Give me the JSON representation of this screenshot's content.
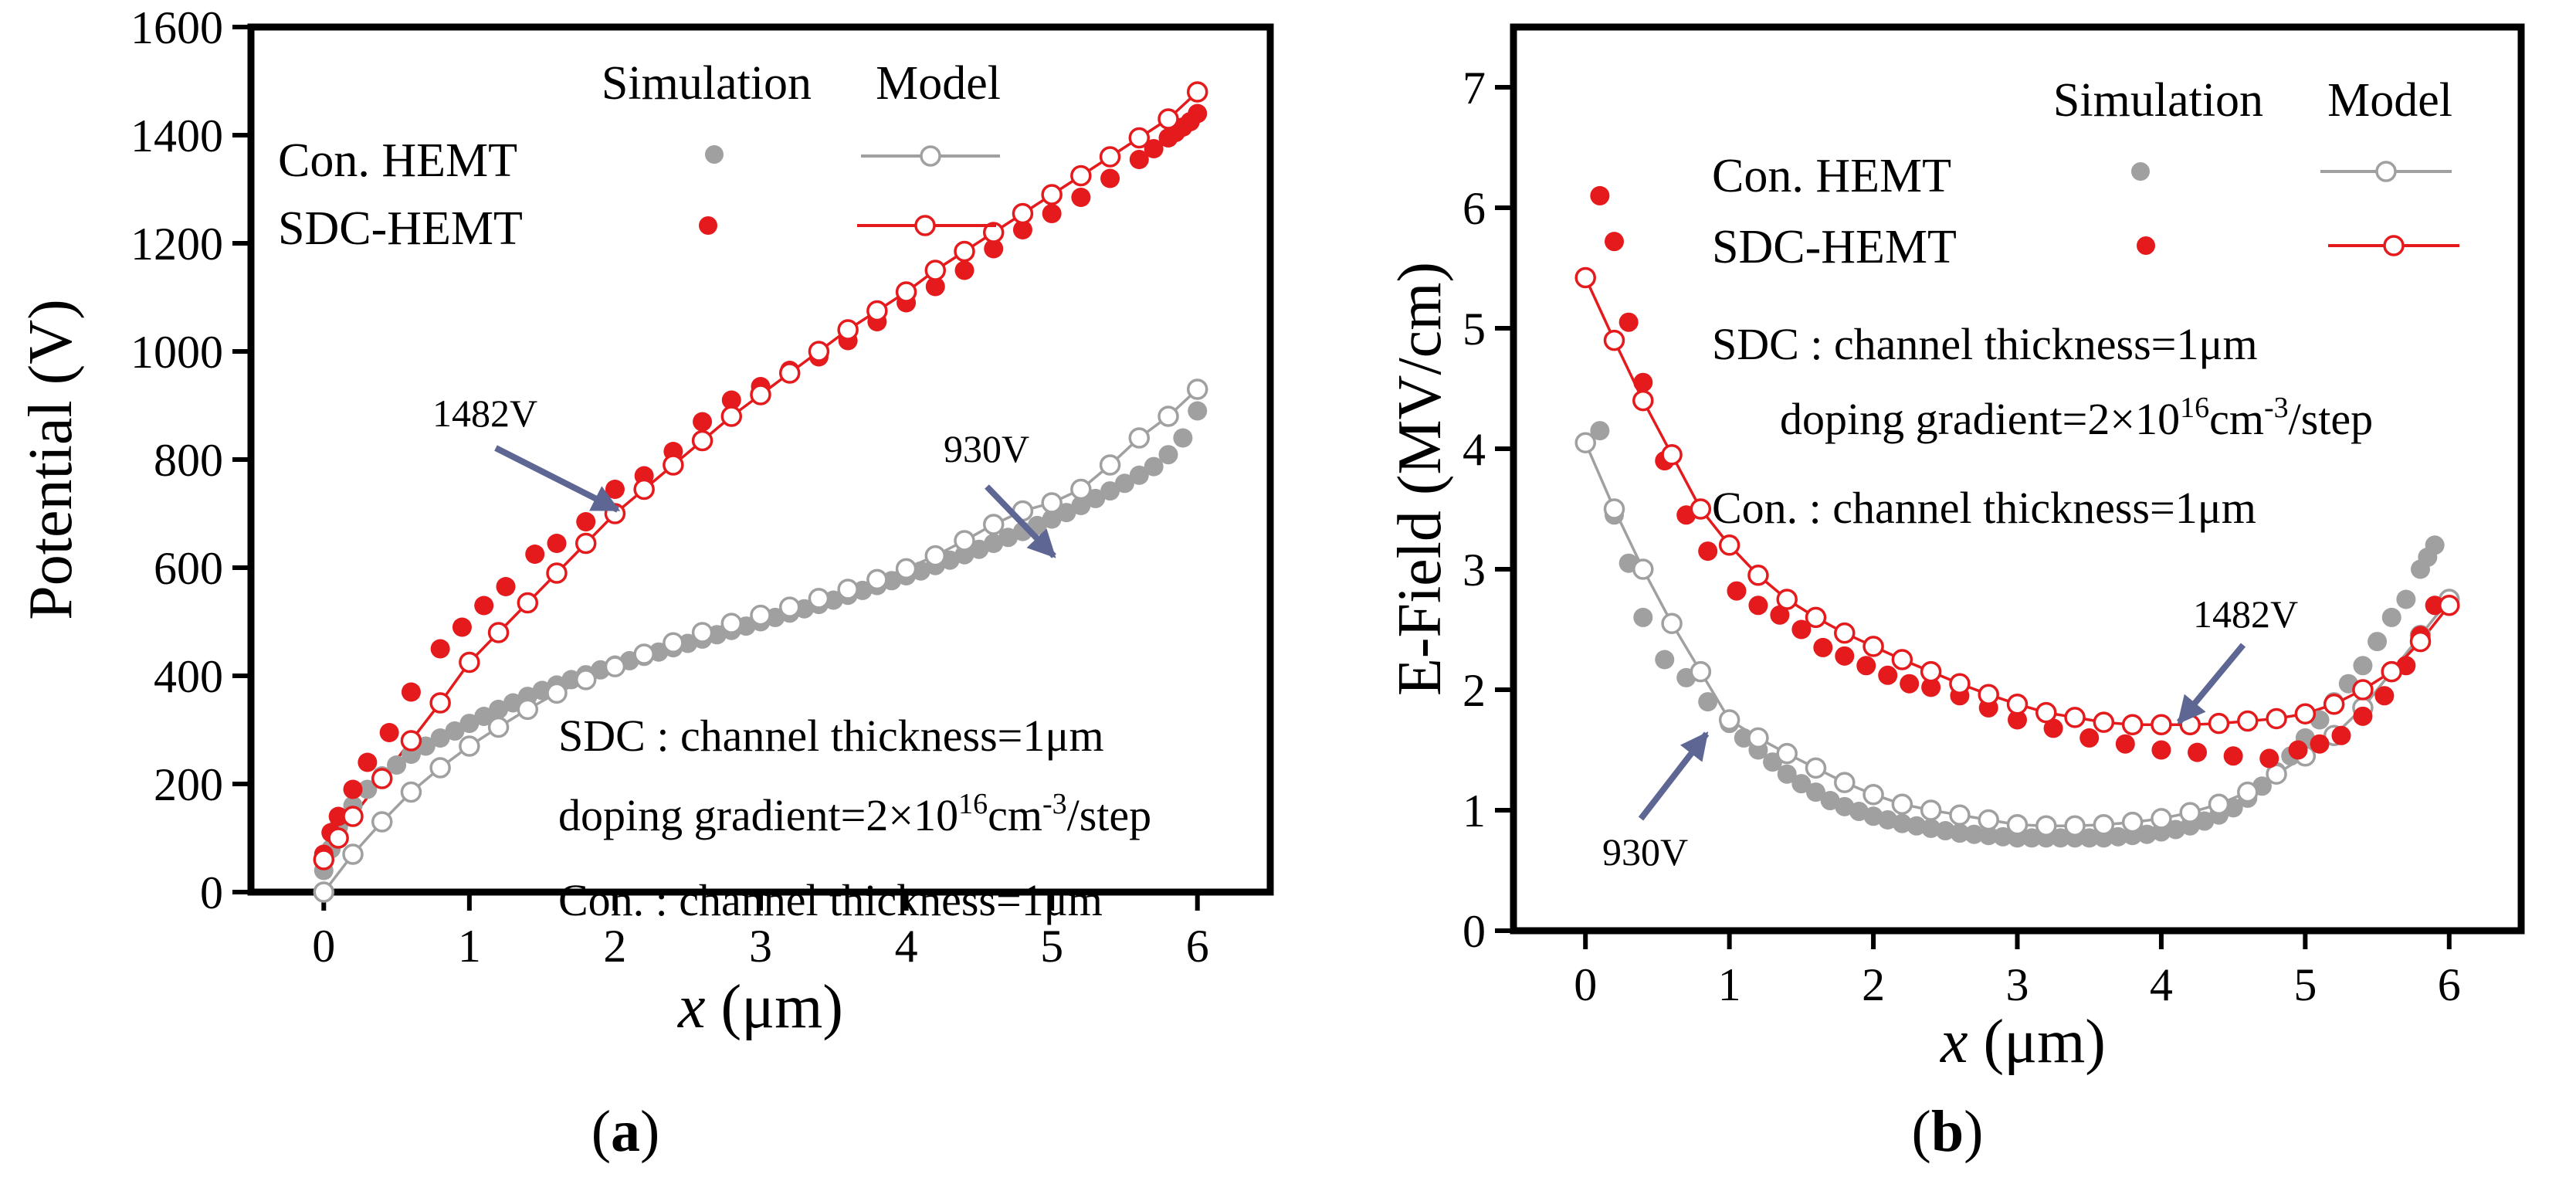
{
  "colors": {
    "con": "#a0a0a0",
    "sdc": "#e41a1c",
    "arrow": "#5e6694"
  },
  "chart_data": [
    {
      "type": "scatter",
      "panel": "(a)",
      "xlabel_var": "x",
      "xlabel_unit": " (μm)",
      "ylabel": "Potential (V)",
      "xlim": [
        -0.5,
        6.5
      ],
      "ylim": [
        0,
        1600
      ],
      "xticks": [
        0,
        1,
        2,
        3,
        4,
        5,
        6
      ],
      "yticks": [
        0,
        200,
        400,
        600,
        800,
        1000,
        1200,
        1400,
        1600
      ],
      "legend": {
        "col_sim": "Simulation",
        "col_model": "Model",
        "rows": [
          "Con. HEMT",
          "SDC-HEMT"
        ]
      },
      "annotations": {
        "line1": "SDC : channel thickness=1μm",
        "line2_pre": "doping gradient=2×10",
        "line2_sup1": "16",
        "line2_mid": "cm",
        "line2_sup2": "-3",
        "line2_post": "/step",
        "line3": "Con. : channel thickness=1μm",
        "arrow1": "1482V",
        "arrow2": "930V"
      },
      "series": [
        {
          "name": "Con. HEMT Simulation",
          "style": "dot",
          "color": "con",
          "x": [
            0,
            0.05,
            0.1,
            0.2,
            0.3,
            0.4,
            0.5,
            0.6,
            0.7,
            0.8,
            0.9,
            1.0,
            1.1,
            1.2,
            1.3,
            1.4,
            1.5,
            1.6,
            1.7,
            1.8,
            1.9,
            2.0,
            2.1,
            2.2,
            2.3,
            2.4,
            2.5,
            2.6,
            2.7,
            2.8,
            2.9,
            3.0,
            3.1,
            3.2,
            3.3,
            3.4,
            3.5,
            3.6,
            3.7,
            3.8,
            3.9,
            4.0,
            4.1,
            4.2,
            4.3,
            4.4,
            4.5,
            4.6,
            4.7,
            4.8,
            4.9,
            5.0,
            5.1,
            5.2,
            5.3,
            5.4,
            5.5,
            5.6,
            5.7,
            5.8,
            5.9,
            6.0
          ],
          "y": [
            40,
            80,
            120,
            160,
            190,
            215,
            235,
            255,
            270,
            285,
            298,
            312,
            325,
            338,
            350,
            362,
            373,
            383,
            393,
            402,
            411,
            420,
            428,
            436,
            444,
            452,
            460,
            468,
            476,
            484,
            492,
            500,
            508,
            516,
            524,
            532,
            540,
            549,
            558,
            567,
            576,
            585,
            594,
            604,
            614,
            624,
            634,
            645,
            656,
            667,
            678,
            690,
            702,
            715,
            728,
            742,
            756,
            771,
            787,
            809,
            840,
            890
          ]
        },
        {
          "name": "Con. HEMT Model",
          "style": "open",
          "color": "con",
          "x": [
            0,
            0.2,
            0.4,
            0.6,
            0.8,
            1.0,
            1.2,
            1.4,
            1.6,
            1.8,
            2.0,
            2.2,
            2.4,
            2.6,
            2.8,
            3.0,
            3.2,
            3.4,
            3.6,
            3.8,
            4.0,
            4.2,
            4.4,
            4.6,
            4.8,
            5.0,
            5.2,
            5.4,
            5.6,
            5.8,
            6.0
          ],
          "y": [
            0,
            70,
            130,
            185,
            230,
            270,
            305,
            338,
            368,
            393,
            417,
            440,
            461,
            480,
            497,
            512,
            527,
            543,
            560,
            578,
            598,
            622,
            650,
            680,
            705,
            720,
            745,
            790,
            840,
            880,
            930
          ]
        },
        {
          "name": "SDC-HEMT Simulation",
          "style": "dot",
          "color": "sdc",
          "x": [
            0,
            0.05,
            0.1,
            0.2,
            0.3,
            0.45,
            0.6,
            0.8,
            0.95,
            1.1,
            1.25,
            1.45,
            1.6,
            1.8,
            2.0,
            2.2,
            2.4,
            2.6,
            2.8,
            3.0,
            3.2,
            3.4,
            3.6,
            3.8,
            4.0,
            4.2,
            4.4,
            4.6,
            4.8,
            5.0,
            5.2,
            5.4,
            5.6,
            5.7,
            5.8,
            5.85,
            5.9,
            5.95,
            6.0
          ],
          "y": [
            70,
            110,
            140,
            190,
            240,
            295,
            370,
            450,
            490,
            530,
            565,
            625,
            645,
            685,
            745,
            770,
            815,
            870,
            910,
            935,
            965,
            990,
            1020,
            1055,
            1090,
            1120,
            1150,
            1190,
            1225,
            1255,
            1285,
            1320,
            1355,
            1375,
            1395,
            1405,
            1415,
            1425,
            1440
          ]
        },
        {
          "name": "SDC-HEMT Model",
          "style": "open",
          "color": "sdc",
          "x": [
            0,
            0.1,
            0.2,
            0.4,
            0.6,
            0.8,
            1.0,
            1.2,
            1.4,
            1.6,
            1.8,
            2.0,
            2.2,
            2.4,
            2.6,
            2.8,
            3.0,
            3.2,
            3.4,
            3.6,
            3.8,
            4.0,
            4.2,
            4.4,
            4.6,
            4.8,
            5.0,
            5.2,
            5.4,
            5.6,
            5.8,
            6.0
          ],
          "y": [
            60,
            100,
            140,
            210,
            280,
            350,
            425,
            480,
            535,
            590,
            645,
            700,
            745,
            790,
            835,
            880,
            920,
            960,
            1000,
            1040,
            1075,
            1110,
            1150,
            1185,
            1220,
            1255,
            1290,
            1325,
            1360,
            1395,
            1430,
            1480
          ]
        }
      ]
    },
    {
      "type": "scatter",
      "panel": "(b)",
      "xlabel_var": "x",
      "xlabel_unit": " (μm)",
      "ylabel": "E-Field (MV/cm)",
      "xlim": [
        -0.5,
        6.5
      ],
      "ylim": [
        0,
        7.5
      ],
      "xticks": [
        0,
        1,
        2,
        3,
        4,
        5,
        6
      ],
      "yticks": [
        0,
        1,
        2,
        3,
        4,
        5,
        6,
        7
      ],
      "legend": {
        "col_sim": "Simulation",
        "col_model": "Model",
        "rows": [
          "Con. HEMT",
          "SDC-HEMT"
        ]
      },
      "annotations": {
        "line1": "SDC : channel thickness=1μm",
        "line2_pre": "doping gradient=2×10",
        "line2_sup1": "16",
        "line2_mid": "cm",
        "line2_sup2": "-3",
        "line2_post": "/step",
        "line3": "Con. : channel thickness=1μm",
        "arrow1": "1482V",
        "arrow2": "930V"
      },
      "series": [
        {
          "name": "Con. HEMT Simulation",
          "style": "dot",
          "color": "con",
          "x": [
            0.1,
            0.2,
            0.3,
            0.4,
            0.55,
            0.7,
            0.85,
            1.0,
            1.1,
            1.2,
            1.3,
            1.4,
            1.5,
            1.6,
            1.7,
            1.8,
            1.9,
            2.0,
            2.1,
            2.2,
            2.3,
            2.4,
            2.5,
            2.6,
            2.7,
            2.8,
            2.9,
            3.0,
            3.1,
            3.2,
            3.3,
            3.4,
            3.5,
            3.6,
            3.7,
            3.8,
            3.9,
            4.0,
            4.1,
            4.2,
            4.3,
            4.4,
            4.5,
            4.6,
            4.7,
            4.8,
            4.9,
            5.0,
            5.1,
            5.2,
            5.3,
            5.4,
            5.5,
            5.6,
            5.7,
            5.8,
            5.85,
            5.9
          ],
          "y": [
            4.15,
            3.45,
            3.05,
            2.6,
            2.25,
            2.1,
            1.9,
            1.72,
            1.6,
            1.5,
            1.4,
            1.3,
            1.22,
            1.15,
            1.08,
            1.03,
            0.99,
            0.95,
            0.92,
            0.89,
            0.87,
            0.85,
            0.83,
            0.81,
            0.8,
            0.79,
            0.78,
            0.77,
            0.77,
            0.77,
            0.77,
            0.77,
            0.77,
            0.77,
            0.78,
            0.79,
            0.8,
            0.82,
            0.84,
            0.87,
            0.91,
            0.96,
            1.02,
            1.1,
            1.2,
            1.32,
            1.45,
            1.6,
            1.75,
            1.9,
            2.05,
            2.2,
            2.4,
            2.6,
            2.75,
            3.0,
            3.1,
            3.2
          ]
        },
        {
          "name": "Con. HEMT Model",
          "style": "open",
          "color": "con",
          "x": [
            0,
            0.2,
            0.4,
            0.6,
            0.8,
            1.0,
            1.2,
            1.4,
            1.6,
            1.8,
            2.0,
            2.2,
            2.4,
            2.6,
            2.8,
            3.0,
            3.2,
            3.4,
            3.6,
            3.8,
            4.0,
            4.2,
            4.4,
            4.6,
            4.8,
            5.0,
            5.2,
            5.4,
            5.6,
            5.8,
            6.0
          ],
          "y": [
            4.05,
            3.5,
            3.0,
            2.55,
            2.15,
            1.75,
            1.6,
            1.47,
            1.35,
            1.23,
            1.13,
            1.05,
            1.0,
            0.96,
            0.92,
            0.88,
            0.87,
            0.87,
            0.88,
            0.9,
            0.93,
            0.98,
            1.05,
            1.15,
            1.3,
            1.45,
            1.62,
            1.85,
            2.15,
            2.45,
            2.75
          ]
        },
        {
          "name": "SDC-HEMT Simulation",
          "style": "dot",
          "color": "sdc",
          "x": [
            0.1,
            0.2,
            0.3,
            0.4,
            0.55,
            0.7,
            0.85,
            1.05,
            1.2,
            1.35,
            1.5,
            1.65,
            1.8,
            1.95,
            2.1,
            2.25,
            2.4,
            2.6,
            2.8,
            3.0,
            3.25,
            3.5,
            3.75,
            4.0,
            4.25,
            4.5,
            4.75,
            4.95,
            5.1,
            5.25,
            5.4,
            5.55,
            5.7,
            5.8,
            5.9
          ],
          "y": [
            6.1,
            5.72,
            5.05,
            4.55,
            3.9,
            3.45,
            3.15,
            2.82,
            2.7,
            2.62,
            2.5,
            2.35,
            2.28,
            2.2,
            2.12,
            2.05,
            2.02,
            1.95,
            1.85,
            1.75,
            1.68,
            1.6,
            1.55,
            1.5,
            1.48,
            1.45,
            1.43,
            1.5,
            1.55,
            1.62,
            1.78,
            1.95,
            2.2,
            2.45,
            2.7
          ]
        },
        {
          "name": "SDC-HEMT Model",
          "style": "open",
          "color": "sdc",
          "x": [
            0,
            0.2,
            0.4,
            0.6,
            0.8,
            1.0,
            1.2,
            1.4,
            1.6,
            1.8,
            2.0,
            2.2,
            2.4,
            2.6,
            2.8,
            3.0,
            3.2,
            3.4,
            3.6,
            3.8,
            4.0,
            4.2,
            4.4,
            4.6,
            4.8,
            5.0,
            5.2,
            5.4,
            5.6,
            5.8,
            6.0
          ],
          "y": [
            5.42,
            4.9,
            4.4,
            3.95,
            3.5,
            3.2,
            2.95,
            2.75,
            2.6,
            2.47,
            2.36,
            2.25,
            2.15,
            2.05,
            1.96,
            1.88,
            1.81,
            1.77,
            1.73,
            1.71,
            1.71,
            1.71,
            1.72,
            1.74,
            1.76,
            1.8,
            1.88,
            2.0,
            2.15,
            2.4,
            2.7
          ]
        }
      ]
    }
  ]
}
